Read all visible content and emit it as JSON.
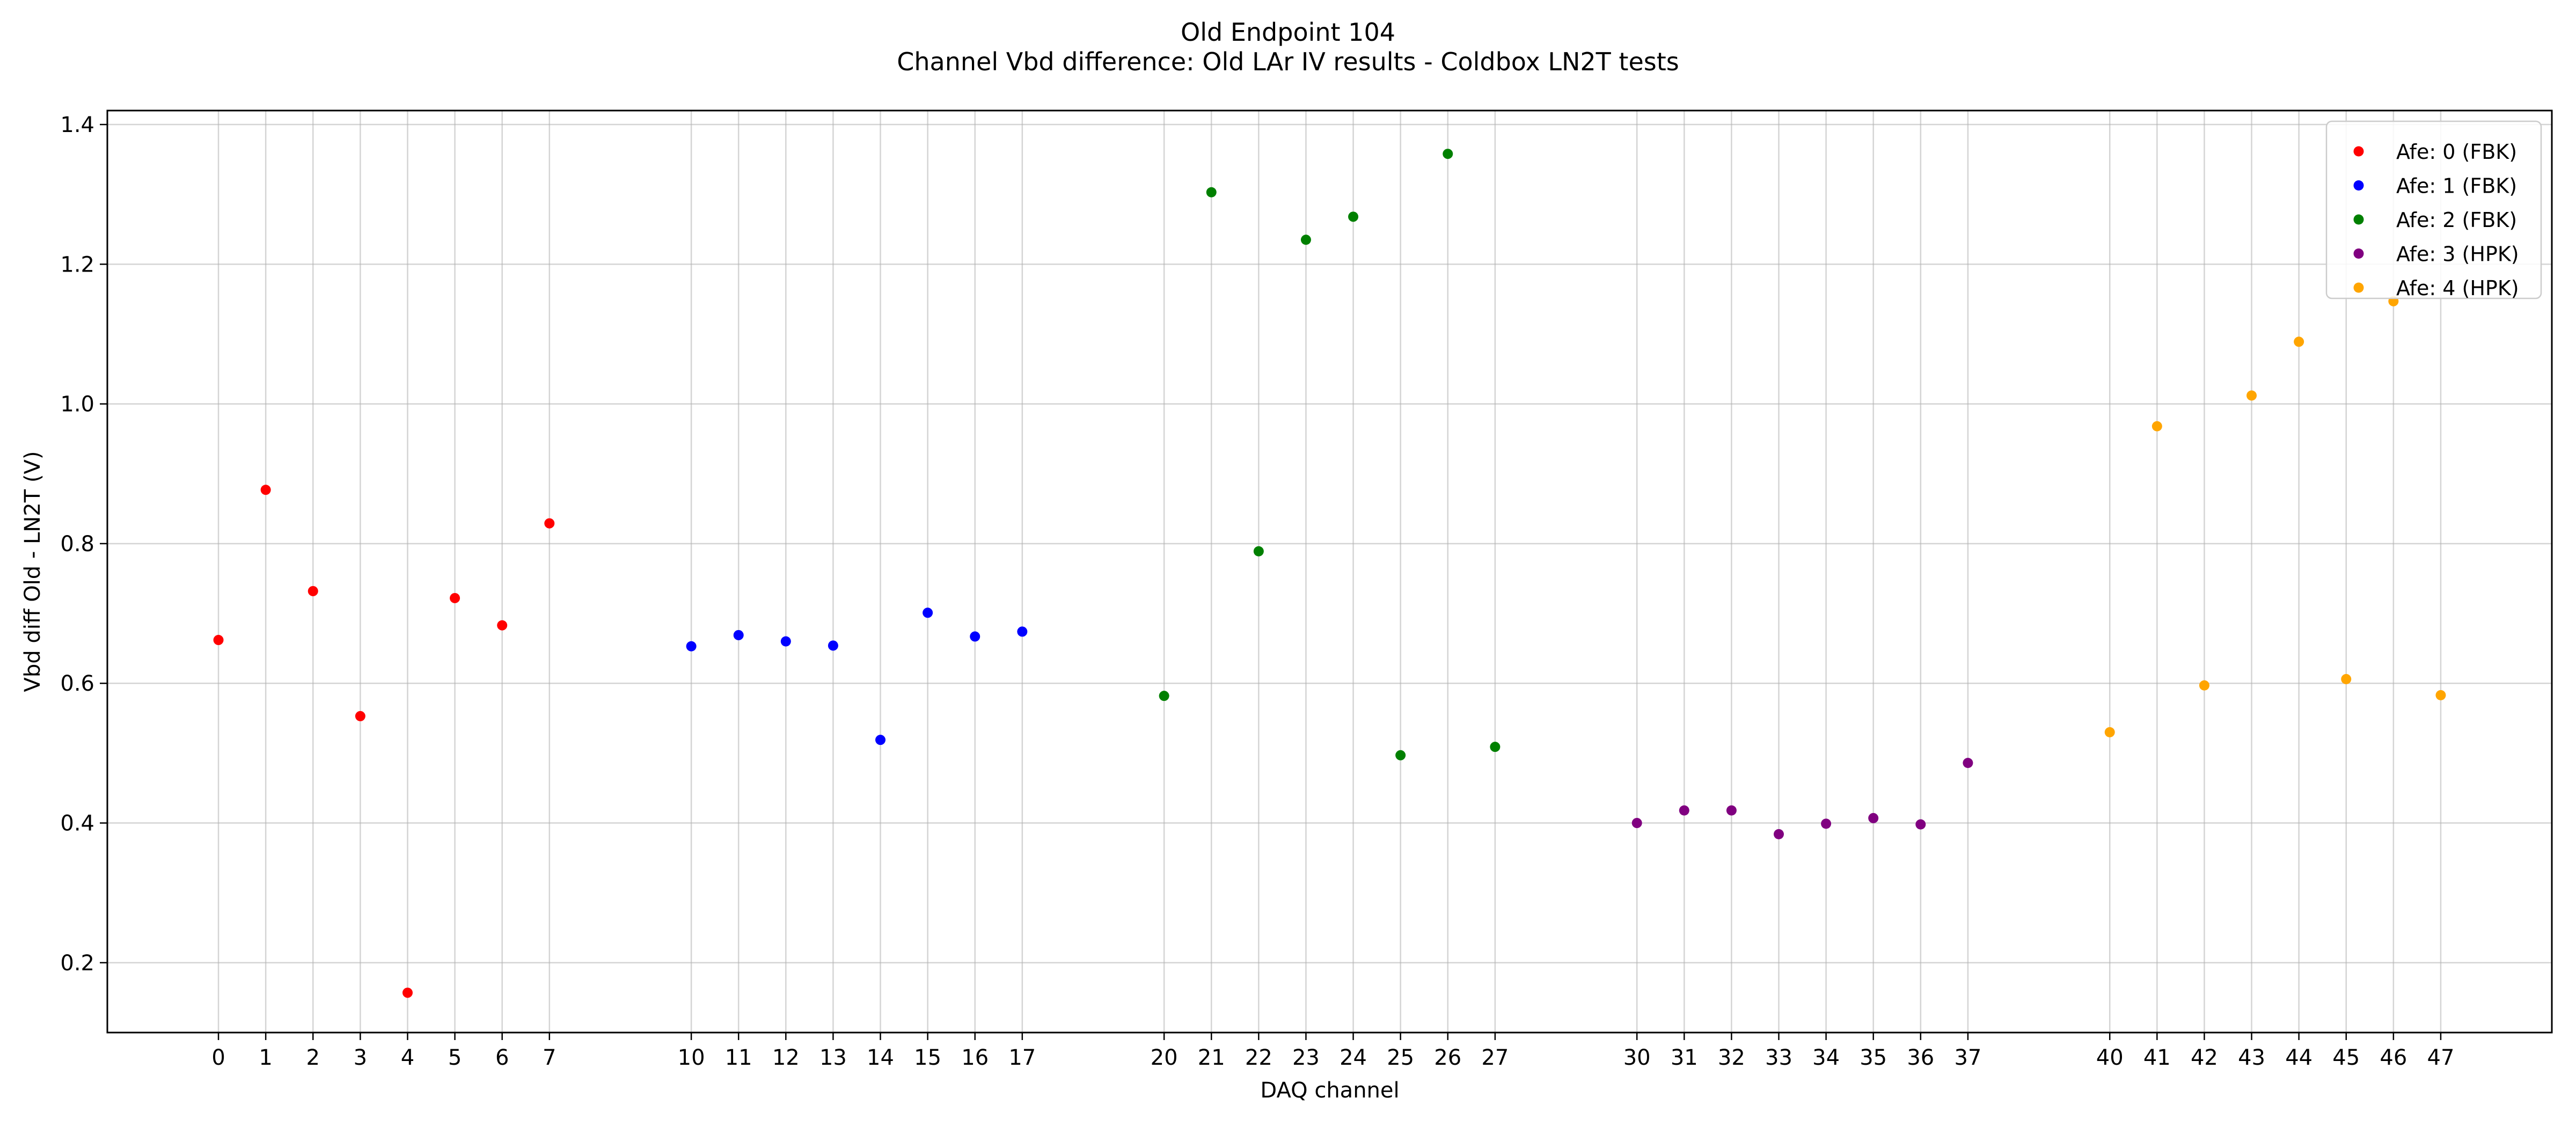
{
  "chart_data": {
    "type": "scatter",
    "title": "Old Endpoint 104",
    "subtitle": "Channel Vbd difference: Old LAr IV results -  Coldbox LN2T tests",
    "xlabel": "DAQ channel",
    "ylabel": "Vbd diff Old - LN2T (V)",
    "xlim": [
      -2.35,
      49.35
    ],
    "ylim": [
      0.1,
      1.42
    ],
    "x_ticks": [
      0,
      1,
      2,
      3,
      4,
      5,
      6,
      7,
      10,
      11,
      12,
      13,
      14,
      15,
      16,
      17,
      20,
      21,
      22,
      23,
      24,
      25,
      26,
      27,
      30,
      31,
      32,
      33,
      34,
      35,
      36,
      37,
      40,
      41,
      42,
      43,
      44,
      45,
      46,
      47
    ],
    "y_ticks": [
      0.2,
      0.4,
      0.6,
      0.8,
      1.0,
      1.2,
      1.4
    ],
    "y_tick_labels": [
      "0.2",
      "0.4",
      "0.6",
      "0.8",
      "1.0",
      "1.2",
      "1.4"
    ],
    "grid": true,
    "legend_position": "top-right",
    "series": [
      {
        "name": "Afe: 0 (FBK)",
        "color": "#ff0000",
        "x": [
          0,
          1,
          2,
          3,
          4,
          5,
          6,
          7
        ],
        "y": [
          0.662,
          0.877,
          0.732,
          0.553,
          0.157,
          0.722,
          0.683,
          0.829
        ]
      },
      {
        "name": "Afe: 1 (FBK)",
        "color": "#0000ff",
        "x": [
          10,
          11,
          12,
          13,
          14,
          15,
          16,
          17
        ],
        "y": [
          0.653,
          0.669,
          0.66,
          0.654,
          0.519,
          0.701,
          0.667,
          0.674
        ]
      },
      {
        "name": "Afe: 2 (FBK)",
        "color": "#008000",
        "x": [
          20,
          21,
          22,
          23,
          24,
          25,
          26,
          27
        ],
        "y": [
          0.582,
          1.303,
          0.789,
          1.235,
          1.268,
          0.497,
          1.358,
          0.509
        ]
      },
      {
        "name": "Afe: 3 (HPK)",
        "color": "#800080",
        "x": [
          30,
          31,
          32,
          33,
          34,
          35,
          36,
          37
        ],
        "y": [
          0.4,
          0.418,
          0.418,
          0.384,
          0.399,
          0.407,
          0.398,
          0.486
        ]
      },
      {
        "name": "Afe: 4 (HPK)",
        "color": "#ffa500",
        "x": [
          40,
          41,
          42,
          43,
          44,
          45,
          46,
          47
        ],
        "y": [
          0.53,
          0.968,
          0.597,
          1.012,
          1.089,
          0.606,
          1.147,
          0.583
        ]
      }
    ]
  }
}
